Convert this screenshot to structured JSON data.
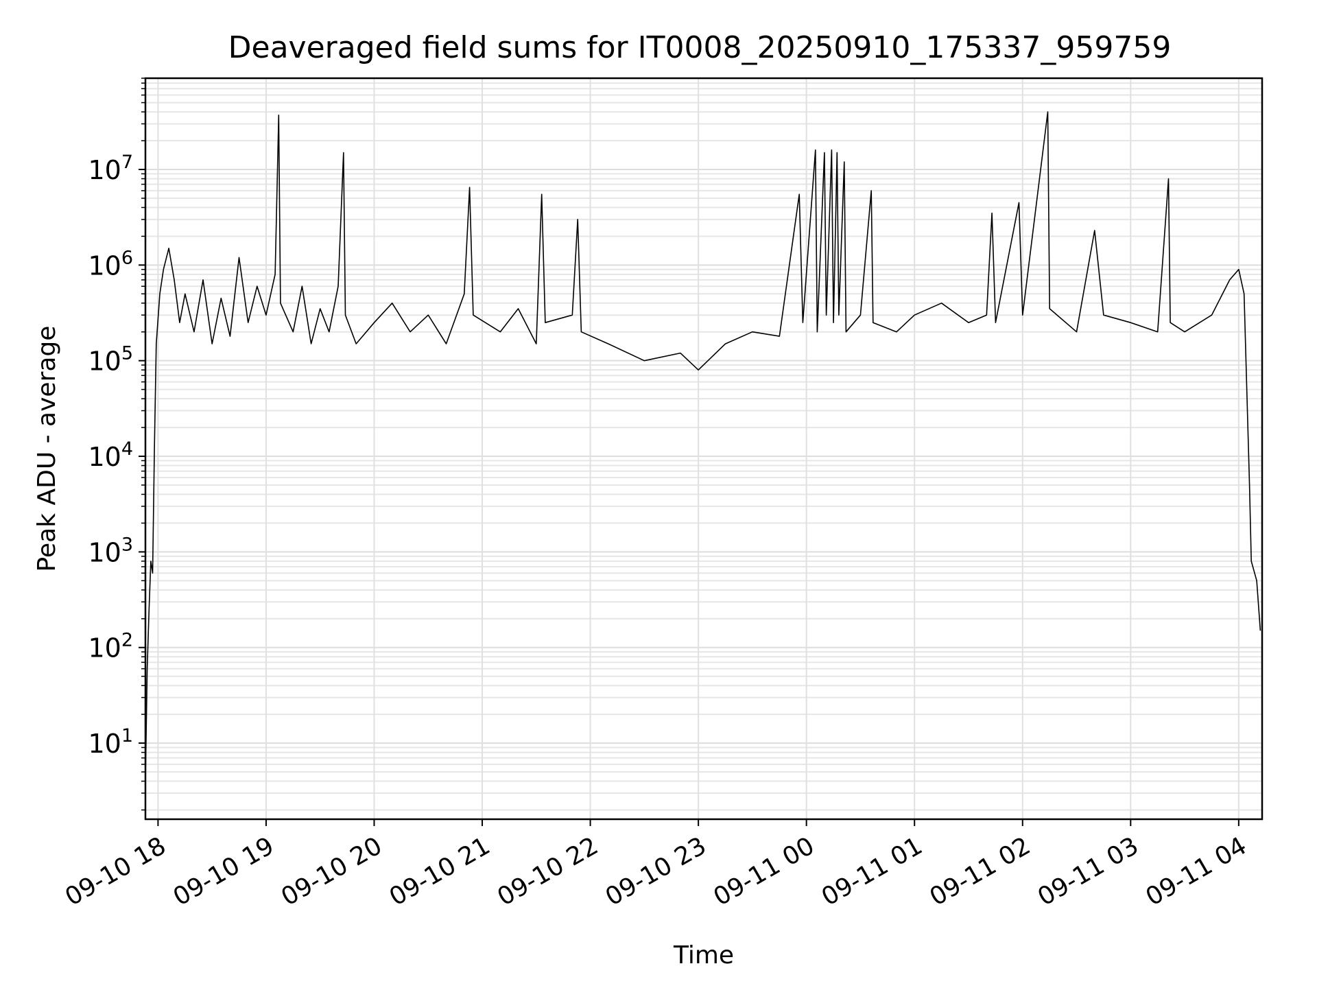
{
  "chart_data": {
    "type": "line",
    "title": "Deaveraged field sums for IT0008_20250910_175337_959759",
    "xlabel": "Time",
    "ylabel": "Peak ADU - average",
    "yscale": "log",
    "ylim": [
      1.6,
      90000000
    ],
    "xlim": [
      "2025-09-10 17:53",
      "2025-09-11 04:13"
    ],
    "grid": "major and minor",
    "x_ticks": [
      {
        "t": "2025-09-10 18:00",
        "label": "09-10 18"
      },
      {
        "t": "2025-09-10 19:00",
        "label": "09-10 19"
      },
      {
        "t": "2025-09-10 20:00",
        "label": "09-10 20"
      },
      {
        "t": "2025-09-10 21:00",
        "label": "09-10 21"
      },
      {
        "t": "2025-09-10 22:00",
        "label": "09-10 22"
      },
      {
        "t": "2025-09-10 23:00",
        "label": "09-10 23"
      },
      {
        "t": "2025-09-11 00:00",
        "label": "09-11 00"
      },
      {
        "t": "2025-09-11 01:00",
        "label": "09-11 01"
      },
      {
        "t": "2025-09-11 02:00",
        "label": "09-11 02"
      },
      {
        "t": "2025-09-11 03:00",
        "label": "09-11 03"
      },
      {
        "t": "2025-09-11 04:00",
        "label": "09-11 04"
      }
    ],
    "y_ticks": [
      {
        "value": 10,
        "base": "10",
        "exp": "1"
      },
      {
        "value": 100,
        "base": "10",
        "exp": "2"
      },
      {
        "value": 1000,
        "base": "10",
        "exp": "3"
      },
      {
        "value": 10000,
        "base": "10",
        "exp": "4"
      },
      {
        "value": 100000,
        "base": "10",
        "exp": "5"
      },
      {
        "value": 1000000,
        "base": "10",
        "exp": "6"
      },
      {
        "value": 10000000,
        "base": "10",
        "exp": "7"
      }
    ],
    "line_color": "#000000",
    "series": [
      {
        "points": [
          [
            "2025-09-10 17:53",
            4
          ],
          [
            "2025-09-10 17:54",
            60
          ],
          [
            "2025-09-10 17:55",
            250
          ],
          [
            "2025-09-10 17:56",
            800
          ],
          [
            "2025-09-10 17:57",
            600
          ],
          [
            "2025-09-10 17:58",
            12000
          ],
          [
            "2025-09-10 17:59",
            150000
          ],
          [
            "2025-09-10 18:01",
            500000
          ],
          [
            "2025-09-10 18:03",
            900000
          ],
          [
            "2025-09-10 18:06",
            1500000
          ],
          [
            "2025-09-10 18:09",
            700000
          ],
          [
            "2025-09-10 18:12",
            250000
          ],
          [
            "2025-09-10 18:15",
            500000
          ],
          [
            "2025-09-10 18:20",
            200000
          ],
          [
            "2025-09-10 18:25",
            700000
          ],
          [
            "2025-09-10 18:30",
            150000
          ],
          [
            "2025-09-10 18:35",
            450000
          ],
          [
            "2025-09-10 18:40",
            180000
          ],
          [
            "2025-09-10 18:45",
            1200000
          ],
          [
            "2025-09-10 18:50",
            250000
          ],
          [
            "2025-09-10 18:55",
            600000
          ],
          [
            "2025-09-10 19:00",
            300000
          ],
          [
            "2025-09-10 19:05",
            800000
          ],
          [
            "2025-09-10 19:07",
            37000000
          ],
          [
            "2025-09-10 19:08",
            400000
          ],
          [
            "2025-09-10 19:15",
            200000
          ],
          [
            "2025-09-10 19:20",
            600000
          ],
          [
            "2025-09-10 19:25",
            150000
          ],
          [
            "2025-09-10 19:30",
            350000
          ],
          [
            "2025-09-10 19:35",
            200000
          ],
          [
            "2025-09-10 19:40",
            600000
          ],
          [
            "2025-09-10 19:43",
            15000000
          ],
          [
            "2025-09-10 19:44",
            300000
          ],
          [
            "2025-09-10 19:50",
            150000
          ],
          [
            "2025-09-10 20:00",
            250000
          ],
          [
            "2025-09-10 20:10",
            400000
          ],
          [
            "2025-09-10 20:20",
            200000
          ],
          [
            "2025-09-10 20:30",
            300000
          ],
          [
            "2025-09-10 20:40",
            150000
          ],
          [
            "2025-09-10 20:50",
            500000
          ],
          [
            "2025-09-10 20:53",
            6500000
          ],
          [
            "2025-09-10 20:55",
            300000
          ],
          [
            "2025-09-10 21:10",
            200000
          ],
          [
            "2025-09-10 21:20",
            350000
          ],
          [
            "2025-09-10 21:30",
            150000
          ],
          [
            "2025-09-10 21:33",
            5500000
          ],
          [
            "2025-09-10 21:35",
            250000
          ],
          [
            "2025-09-10 21:50",
            300000
          ],
          [
            "2025-09-10 21:53",
            3000000
          ],
          [
            "2025-09-10 21:55",
            200000
          ],
          [
            "2025-09-10 22:10",
            150000
          ],
          [
            "2025-09-10 22:30",
            100000
          ],
          [
            "2025-09-10 22:50",
            120000
          ],
          [
            "2025-09-10 23:00",
            80000
          ],
          [
            "2025-09-10 23:15",
            150000
          ],
          [
            "2025-09-10 23:30",
            200000
          ],
          [
            "2025-09-10 23:45",
            180000
          ],
          [
            "2025-09-10 23:56",
            5500000
          ],
          [
            "2025-09-10 23:58",
            250000
          ],
          [
            "2025-09-11 00:05",
            16000000
          ],
          [
            "2025-09-11 00:06",
            200000
          ],
          [
            "2025-09-11 00:10",
            15000000
          ],
          [
            "2025-09-11 00:11",
            300000
          ],
          [
            "2025-09-11 00:14",
            16000000
          ],
          [
            "2025-09-11 00:15",
            250000
          ],
          [
            "2025-09-11 00:17",
            15000000
          ],
          [
            "2025-09-11 00:18",
            300000
          ],
          [
            "2025-09-11 00:21",
            12000000
          ],
          [
            "2025-09-11 00:22",
            200000
          ],
          [
            "2025-09-11 00:30",
            300000
          ],
          [
            "2025-09-11 00:36",
            6000000
          ],
          [
            "2025-09-11 00:37",
            250000
          ],
          [
            "2025-09-11 00:50",
            200000
          ],
          [
            "2025-09-11 01:00",
            300000
          ],
          [
            "2025-09-11 01:15",
            400000
          ],
          [
            "2025-09-11 01:30",
            250000
          ],
          [
            "2025-09-11 01:40",
            300000
          ],
          [
            "2025-09-11 01:43",
            3500000
          ],
          [
            "2025-09-11 01:45",
            250000
          ],
          [
            "2025-09-11 01:58",
            4500000
          ],
          [
            "2025-09-11 02:00",
            300000
          ],
          [
            "2025-09-11 02:14",
            40000000
          ],
          [
            "2025-09-11 02:15",
            350000
          ],
          [
            "2025-09-11 02:30",
            200000
          ],
          [
            "2025-09-11 02:40",
            2300000
          ],
          [
            "2025-09-11 02:45",
            300000
          ],
          [
            "2025-09-11 03:00",
            250000
          ],
          [
            "2025-09-11 03:15",
            200000
          ],
          [
            "2025-09-11 03:21",
            8000000
          ],
          [
            "2025-09-11 03:22",
            250000
          ],
          [
            "2025-09-11 03:30",
            200000
          ],
          [
            "2025-09-11 03:45",
            300000
          ],
          [
            "2025-09-11 03:55",
            700000
          ],
          [
            "2025-09-11 04:00",
            900000
          ],
          [
            "2025-09-11 04:03",
            500000
          ],
          [
            "2025-09-11 04:06",
            5000
          ],
          [
            "2025-09-11 04:07",
            800
          ],
          [
            "2025-09-11 04:10",
            500
          ],
          [
            "2025-09-11 04:12",
            150
          ]
        ]
      }
    ]
  }
}
